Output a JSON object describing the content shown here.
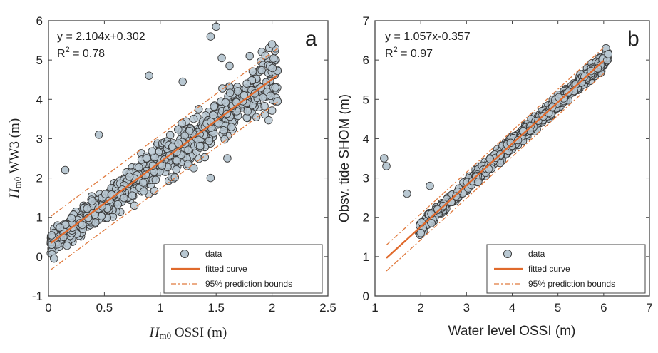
{
  "chart_data": [
    {
      "type": "scatter",
      "panel_letter": "a",
      "xlabel": "H",
      "xlabel_sub": "m0",
      "xlabel_tail": " OSSI (m)",
      "ylabel": "H",
      "ylabel_sub": "m0",
      "ylabel_tail": " WW3 (m)",
      "xlim": [
        0,
        2.5
      ],
      "ylim": [
        -1,
        6
      ],
      "xticks": [
        0,
        0.5,
        1,
        1.5,
        2,
        2.5
      ],
      "xtick_labels": [
        "0",
        "0.5",
        "1",
        "1.5",
        "2",
        "2.5"
      ],
      "yticks": [
        -1,
        0,
        1,
        2,
        3,
        4,
        5,
        6
      ],
      "ytick_labels": [
        "-1",
        "0",
        "1",
        "2",
        "3",
        "4",
        "5",
        "6"
      ],
      "equation": "y = 2.104x+0.302",
      "r2_prefix": "R",
      "r2_sup": "2",
      "r2_value": " = 0.78",
      "fit": {
        "slope": 2.104,
        "intercept": 0.302,
        "x_range": [
          0.02,
          2.05
        ],
        "bound_offset": 0.68
      },
      "scatter_model": {
        "count": 900,
        "x_range": [
          0.02,
          2.05
        ],
        "noise": 0.33,
        "seed": 7
      },
      "outliers": [
        [
          1.5,
          5.85
        ],
        [
          1.45,
          5.6
        ],
        [
          2.0,
          5.4
        ],
        [
          1.8,
          5.1
        ],
        [
          1.55,
          5.05
        ],
        [
          1.62,
          4.85
        ],
        [
          1.9,
          4.3
        ],
        [
          1.75,
          4.1
        ],
        [
          0.9,
          4.6
        ],
        [
          1.2,
          4.45
        ],
        [
          2.05,
          3.95
        ],
        [
          0.45,
          3.1
        ],
        [
          0.15,
          2.2
        ],
        [
          0.05,
          -0.05
        ],
        [
          1.6,
          2.5
        ],
        [
          1.45,
          2.0
        ],
        [
          1.3,
          2.25
        ]
      ],
      "legend": {
        "placement": "bottom-right",
        "entries": [
          "data",
          "fitted curve",
          "95% prediction bounds"
        ]
      },
      "grid": false
    },
    {
      "type": "scatter",
      "panel_letter": "b",
      "xlabel": "Water level OSSI (m)",
      "ylabel": "Obsv. tide SHOM (m)",
      "xlim": [
        1,
        7
      ],
      "ylim": [
        0,
        7
      ],
      "xticks": [
        1,
        2,
        3,
        4,
        5,
        6,
        7
      ],
      "xtick_labels": [
        "1",
        "2",
        "3",
        "4",
        "5",
        "6",
        "7"
      ],
      "yticks": [
        0,
        1,
        2,
        3,
        4,
        5,
        6,
        7
      ],
      "ytick_labels": [
        "0",
        "1",
        "2",
        "3",
        "4",
        "5",
        "6",
        "7"
      ],
      "equation": "y = 1.057x-0.357",
      "r2_prefix": "R",
      "r2_sup": "2",
      "r2_value": " = 0.97",
      "fit": {
        "slope": 1.057,
        "intercept": -0.357,
        "x_range": [
          1.25,
          6.0
        ],
        "bound_offset": 0.33
      },
      "scatter_model": {
        "count": 800,
        "x_range": [
          1.95,
          6.1
        ],
        "noise": 0.12,
        "seed": 13
      },
      "outliers": [
        [
          1.2,
          3.5
        ],
        [
          1.25,
          3.3
        ],
        [
          1.7,
          2.6
        ],
        [
          2.2,
          2.8
        ],
        [
          2.0,
          1.6
        ],
        [
          6.05,
          6.3
        ],
        [
          6.1,
          6.15
        ]
      ],
      "legend": {
        "placement": "bottom-right",
        "entries": [
          "data",
          "fitted curve",
          "95% prediction bounds"
        ]
      },
      "grid": false
    }
  ],
  "colors": {
    "marker_fill": "#b9c8d2",
    "marker_edge": "#3a3a3a",
    "fit_line": "#e06a2c",
    "bounds_line": "#e07a3e",
    "axes": "#444444",
    "text": "#222222"
  }
}
